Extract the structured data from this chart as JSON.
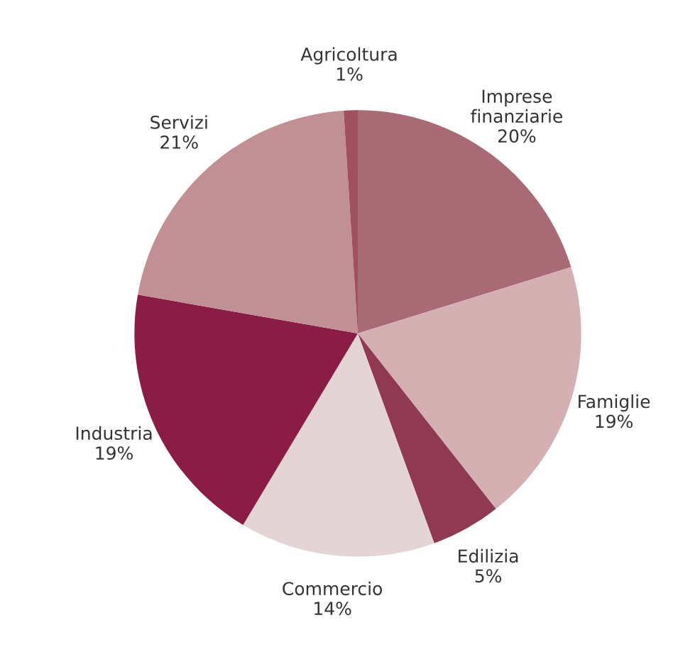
{
  "chart_data": {
    "type": "pie",
    "categories": [
      "Imprese\nfinanziarie",
      "Famiglie",
      "Edilizia",
      "Commercio",
      "Industria",
      "Servizi",
      "Agricoltura"
    ],
    "values": [
      20,
      19,
      5,
      14,
      19,
      21,
      1
    ],
    "value_labels": [
      "20%",
      "19%",
      "5%",
      "14%",
      "19%",
      "21%",
      "1%"
    ],
    "colors": [
      "#a86b76",
      "#d4b0b3",
      "#8f3a52",
      "#e4d4d6",
      "#8a1c45",
      "#c09094",
      "#a0505f"
    ],
    "legend": false
  }
}
